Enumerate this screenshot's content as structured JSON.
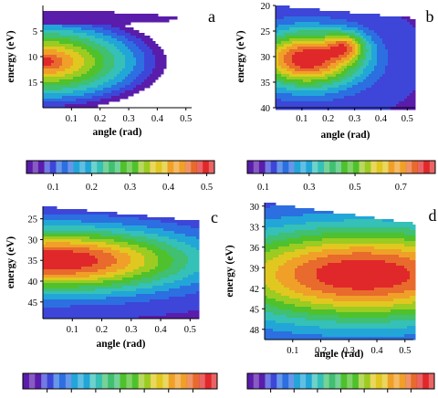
{
  "colors": {
    "palette": [
      "#5a1cab",
      "#3d46d8",
      "#2c6fe0",
      "#22a6d8",
      "#35c0b8",
      "#40c070",
      "#4fc12c",
      "#9ccb22",
      "#e0c820",
      "#f0a028",
      "#e86a2c",
      "#e0282a"
    ],
    "background": "#ffffff"
  },
  "chart_data": [
    {
      "type": "heatmap",
      "panel_label": "a",
      "xlabel": "angle (rad)",
      "ylabel": "energy (eV)",
      "xticks": [
        0.1,
        0.2,
        0.3,
        0.4,
        0.5
      ],
      "yticks": [
        5,
        10,
        15
      ],
      "xlim": [
        0,
        0.52
      ],
      "ylim": [
        0,
        20
      ],
      "y_inverted": true,
      "lobes": [
        {
          "y_center": 2.5,
          "y_half_width": 1.5,
          "x_extent_at_center": 0.47,
          "peak_value": 0.2
        },
        {
          "y_center": 11.0,
          "y_half_width": 9.5,
          "x_extent_at_center": 0.51,
          "peak_value": 0.5,
          "peak_location": [
            0.03,
            11.0
          ]
        }
      ],
      "colorbar": {
        "ticks": [
          0.1,
          0.2,
          0.3,
          0.4,
          0.5
        ],
        "range": [
          0.03,
          0.52
        ]
      }
    },
    {
      "type": "heatmap",
      "panel_label": "b",
      "xlabel": "angle (rad)",
      "ylabel": "energy (eV)",
      "xticks": [
        0.1,
        0.2,
        0.3,
        0.4,
        0.5
      ],
      "yticks": [
        20,
        25,
        30,
        35,
        40
      ],
      "xlim": [
        0,
        0.53
      ],
      "ylim": [
        20,
        40
      ],
      "y_inverted": true,
      "peak_location": [
        0.12,
        30.5
      ],
      "secondary_ridge": {
        "x": 0.27,
        "y": 28
      },
      "colorbar": {
        "ticks": [
          0.1,
          0.3,
          0.5,
          0.7
        ],
        "range": [
          0.03,
          0.85
        ]
      }
    },
    {
      "type": "heatmap",
      "panel_label": "c",
      "xlabel": "angle (rad)",
      "ylabel": "energy (eV)",
      "xticks": [
        0.1,
        0.2,
        0.3,
        0.4,
        0.5
      ],
      "yticks": [
        25,
        30,
        35,
        40,
        45
      ],
      "xlim": [
        0,
        0.53
      ],
      "ylim": [
        22,
        49
      ],
      "y_inverted": true,
      "peak_location": [
        0.05,
        35.0
      ],
      "colorbar": {
        "ticks": [],
        "range": [
          0,
          1
        ]
      }
    },
    {
      "type": "heatmap",
      "panel_label": "d",
      "xlabel": "angle (rad)",
      "ylabel": "energy (eV)",
      "xticks": [
        0.1,
        0.2,
        0.3,
        0.4,
        0.5
      ],
      "yticks": [
        30,
        33,
        36,
        39,
        42,
        45,
        48
      ],
      "xlim": [
        0,
        0.53
      ],
      "ylim": [
        29.5,
        49.5
      ],
      "y_inverted": true,
      "peak_location": [
        0.35,
        40.0
      ],
      "colorbar": {
        "ticks": [],
        "range": [
          0,
          1
        ]
      }
    }
  ]
}
